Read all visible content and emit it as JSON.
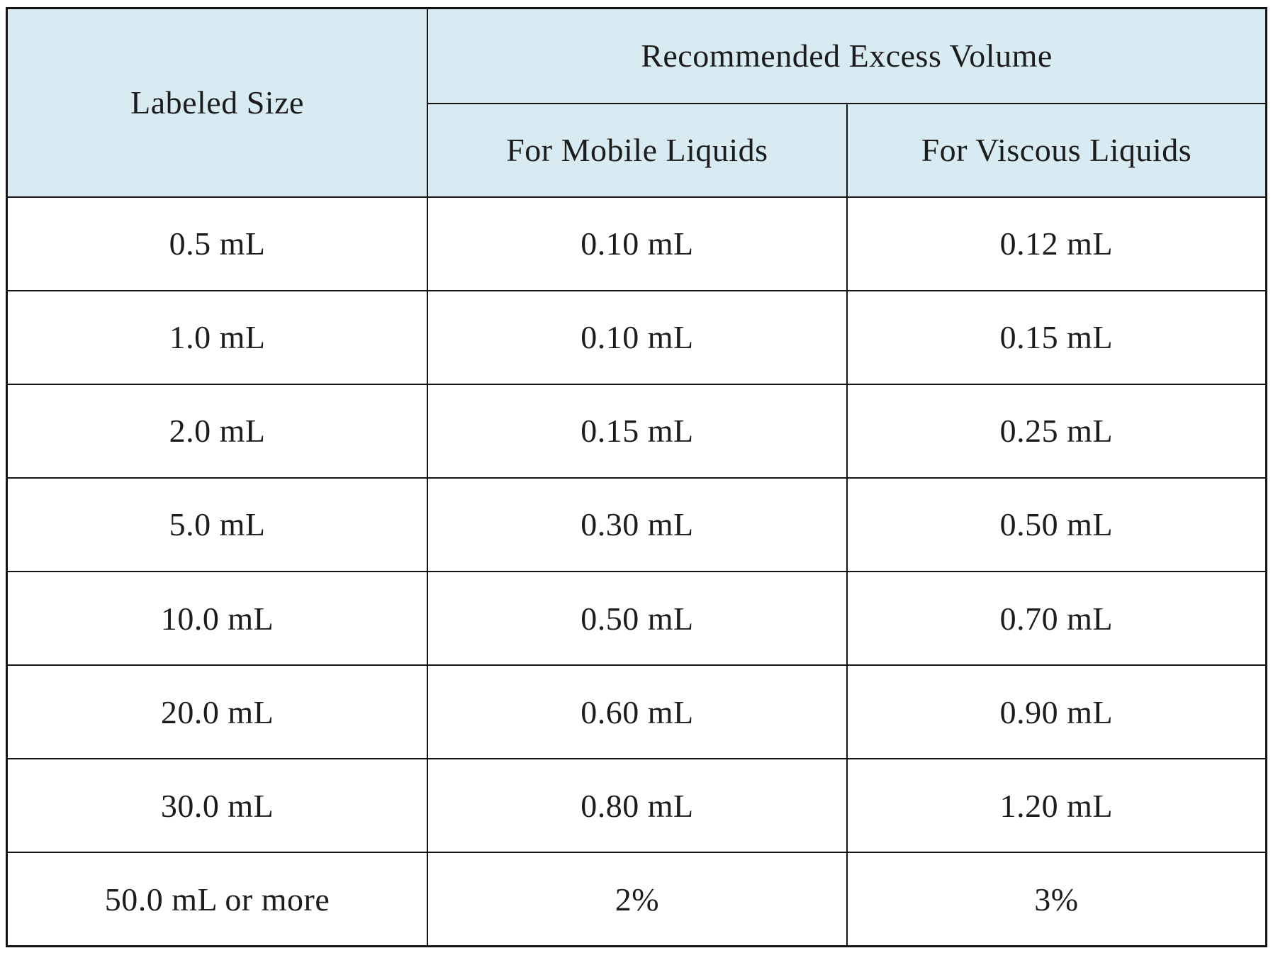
{
  "table": {
    "header": {
      "labeled_size": "Labeled Size",
      "excess_volume_group": "Recommended Excess Volume",
      "mobile_liquids": "For Mobile Liquids",
      "viscous_liquids": "For Viscous Liquids"
    },
    "rows": [
      {
        "size": "0.5 mL",
        "mobile": "0.10 mL",
        "viscous": "0.12 mL"
      },
      {
        "size": "1.0 mL",
        "mobile": "0.10 mL",
        "viscous": "0.15 mL"
      },
      {
        "size": "2.0 mL",
        "mobile": "0.15 mL",
        "viscous": "0.25 mL"
      },
      {
        "size": "5.0 mL",
        "mobile": "0.30 mL",
        "viscous": "0.50 mL"
      },
      {
        "size": "10.0 mL",
        "mobile": "0.50 mL",
        "viscous": "0.70 mL"
      },
      {
        "size": "20.0 mL",
        "mobile": "0.60 mL",
        "viscous": "0.90 mL"
      },
      {
        "size": "30.0 mL",
        "mobile": "0.80 mL",
        "viscous": "1.20 mL"
      },
      {
        "size": "50.0 mL or more",
        "mobile": "2%",
        "viscous": "3%"
      }
    ]
  },
  "colors": {
    "header_background": "#d8eaf2",
    "border": "#141414",
    "text": "#1c1c1c",
    "page_background": "#ffffff"
  }
}
